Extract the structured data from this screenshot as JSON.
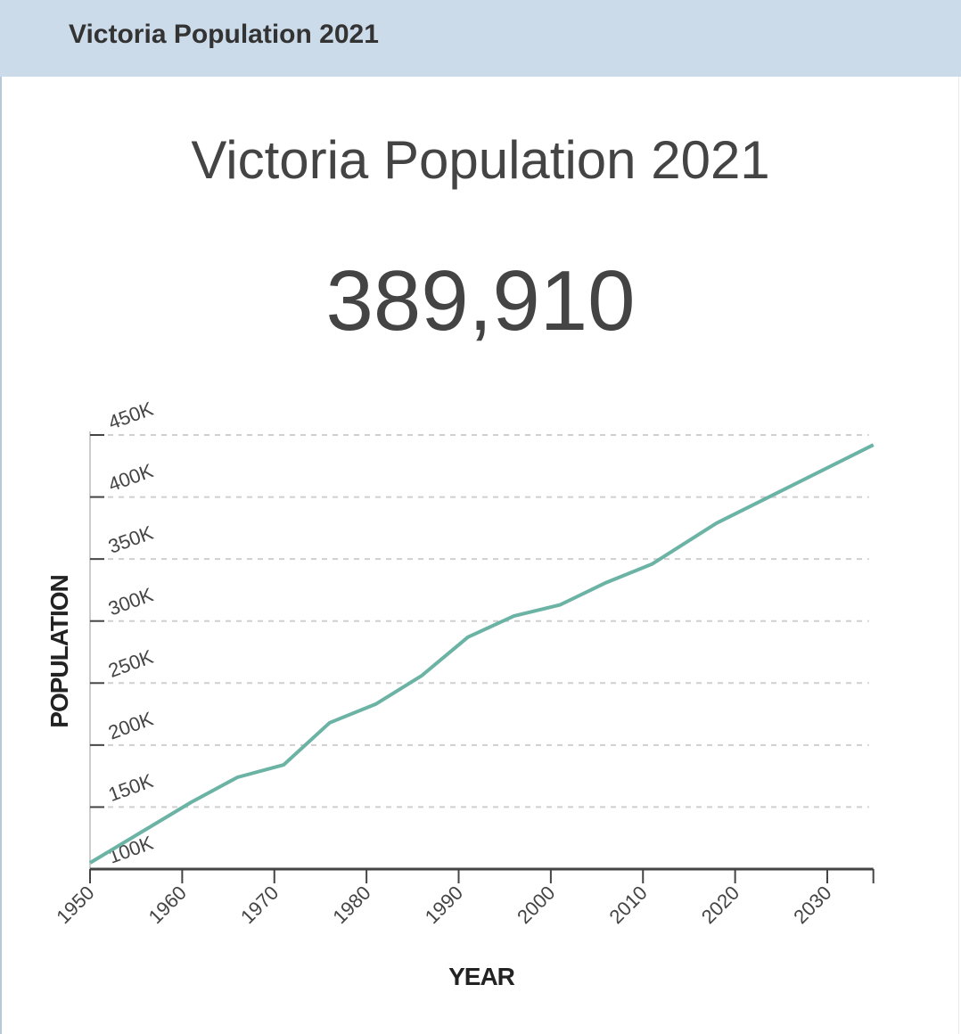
{
  "header": {
    "title": "Victoria Population 2021"
  },
  "main": {
    "title": "Victoria Population 2021",
    "value": "389,910"
  },
  "chart_data": {
    "type": "line",
    "title": "",
    "xlabel": "YEAR",
    "ylabel": "POPULATION",
    "xlim": [
      1950,
      2035
    ],
    "ylim": [
      100000,
      450000
    ],
    "x_ticks": [
      1950,
      1960,
      1970,
      1980,
      1990,
      2000,
      2010,
      2020,
      2030
    ],
    "y_ticks": [
      100000,
      150000,
      200000,
      250000,
      300000,
      350000,
      400000,
      450000
    ],
    "y_tick_labels": [
      "100K",
      "150K",
      "200K",
      "250K",
      "300K",
      "350K",
      "400K",
      "450K"
    ],
    "grid": "horizontal dashed",
    "line_color": "#6bb3a4",
    "x": [
      1950,
      1961,
      1966,
      1971,
      1976,
      1981,
      1986,
      1991,
      1996,
      2001,
      2006,
      2011,
      2018,
      2035
    ],
    "y": [
      105000,
      154000,
      174000,
      184000,
      218000,
      233000,
      256000,
      287000,
      304000,
      313000,
      331000,
      346000,
      379000,
      442000
    ]
  }
}
